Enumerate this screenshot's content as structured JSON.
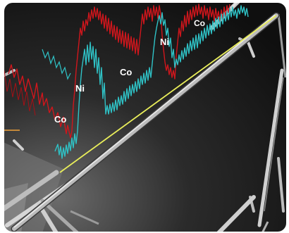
{
  "colors": {
    "background_dark": "#141414",
    "background_light": "#5a5a5a",
    "co_signal": "#d0161c",
    "ni_signal": "#2fc3c7",
    "nanowire": "#b9b9b9",
    "trace_line": "#e9ee5a",
    "accent_orange": "#f0a23a",
    "label": "#ffffff"
  },
  "labels": {
    "co_1": "Co",
    "ni_1": "Ni",
    "co_2": "Co",
    "ni_2": "Ni",
    "co_3": "Co"
  }
}
